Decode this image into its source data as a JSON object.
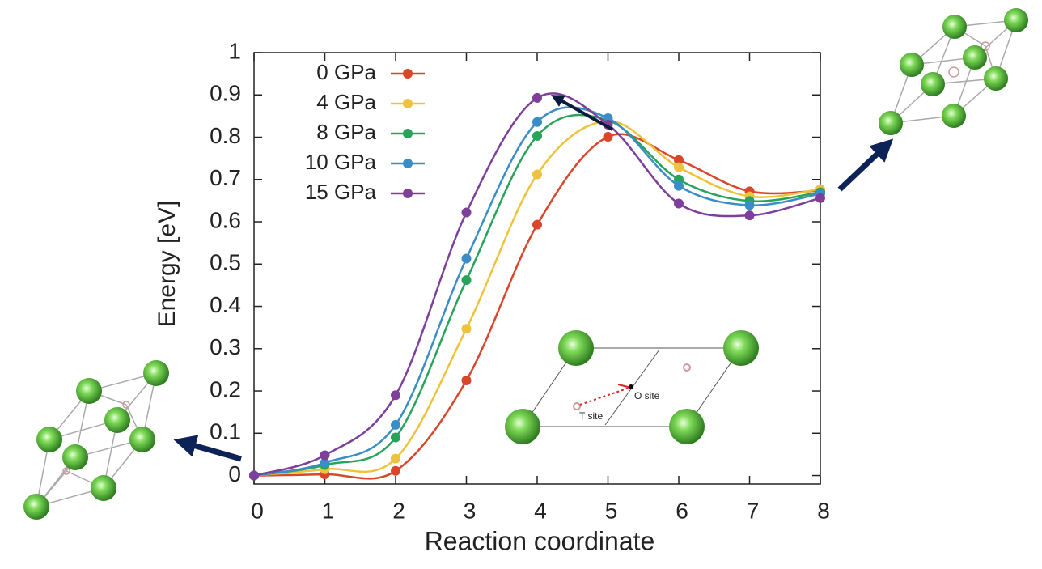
{
  "chart_data": {
    "type": "line",
    "xlabel": "Reaction coordinate",
    "ylabel": "Energy [eV]",
    "x": [
      0,
      1,
      2,
      3,
      4,
      5,
      6,
      7,
      8
    ],
    "series": [
      {
        "name": "0 GPa",
        "color": "#d9472b",
        "values": [
          0,
          0.003,
          0.011,
          0.225,
          0.593,
          0.801,
          0.746,
          0.672,
          0.674
        ]
      },
      {
        "name": "4 GPa",
        "color": "#eec33b",
        "values": [
          0,
          0.015,
          0.04,
          0.347,
          0.712,
          0.838,
          0.729,
          0.66,
          0.677
        ]
      },
      {
        "name": "8 GPa",
        "color": "#27a35a",
        "values": [
          0,
          0.025,
          0.09,
          0.462,
          0.803,
          0.84,
          0.7,
          0.649,
          0.67
        ]
      },
      {
        "name": "10 GPa",
        "color": "#3a8ec6",
        "values": [
          0,
          0.03,
          0.12,
          0.513,
          0.836,
          0.845,
          0.685,
          0.639,
          0.666
        ]
      },
      {
        "name": "15 GPa",
        "color": "#7e3f9a",
        "values": [
          0,
          0.048,
          0.19,
          0.622,
          0.893,
          0.83,
          0.643,
          0.615,
          0.656
        ]
      }
    ],
    "xlim": [
      0,
      8
    ],
    "xticks": [
      0,
      1,
      2,
      3,
      4,
      5,
      6,
      7,
      8
    ],
    "ylim": [
      -0.02,
      1
    ],
    "yticks": [
      0,
      0.1,
      0.2,
      0.3,
      0.4,
      0.5,
      0.6,
      0.7,
      0.8,
      0.9,
      1
    ],
    "smooth": true,
    "legend": "upper left",
    "annotations": [
      "O site",
      "T site"
    ]
  }
}
